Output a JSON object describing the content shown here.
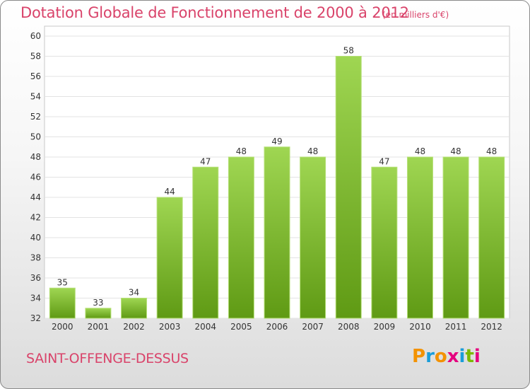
{
  "title": "Dotation Globale de Fonctionnement de 2000 à 2012",
  "subtitle": "(en milliers d'€)",
  "place": "SAINT-OFFENGE-DESSUS",
  "logo": {
    "text": "Proxiti",
    "colors": [
      "#f39200",
      "#1a9dd9",
      "#e5007e",
      "#7ab800"
    ]
  },
  "colors": {
    "accent": "#d9436a",
    "bar_light": "#9fd652",
    "bar_dark": "#5f9a14"
  },
  "chart_data": {
    "type": "bar",
    "categories": [
      "2000",
      "2001",
      "2002",
      "2003",
      "2004",
      "2005",
      "2006",
      "2007",
      "2008",
      "2009",
      "2010",
      "2011",
      "2012"
    ],
    "values": [
      35,
      33,
      34,
      44,
      47,
      48,
      49,
      48,
      58,
      47,
      48,
      48,
      48
    ],
    "ylim": [
      32,
      60
    ],
    "yticks": [
      32,
      34,
      36,
      38,
      40,
      42,
      44,
      46,
      48,
      50,
      52,
      54,
      56,
      58,
      60
    ],
    "grid": true,
    "title": "Dotation Globale de Fonctionnement de 2000 à 2012",
    "xlabel": "",
    "ylabel": ""
  }
}
